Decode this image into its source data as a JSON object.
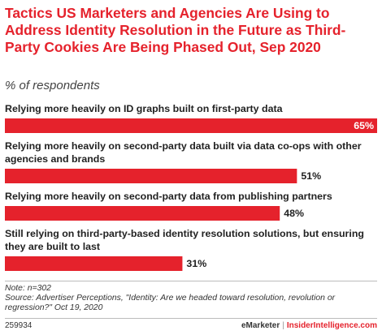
{
  "header": {
    "title": "Tactics US Marketers and Agencies Are Using to Address Identity Resolution in the Future as Third-Party Cookies Are Being Phased Out, Sep 2020",
    "subtitle": "% of respondents"
  },
  "chart_data": {
    "type": "bar",
    "orientation": "horizontal",
    "categories": [
      "Relying more heavily on ID graphs built on first-party data",
      "Relying more heavily on second-party data built via data co-ops with other agencies and brands",
      "Relying more heavily on second-party data from publishing partners",
      "Still relying on third-party-based identity resolution solutions, but ensuring they are built to last"
    ],
    "category_lines": [
      [
        "Relying more heavily on ID graphs built on first-party data"
      ],
      [
        "Relying more heavily on second-party data built via data co-ops with other",
        "agencies and brands"
      ],
      [
        "Relying more heavily on second-party data from publishing partners"
      ],
      [
        "Still relying on third-party-based identity resolution solutions, but ensuring",
        "they are built to last"
      ]
    ],
    "values": [
      65,
      51,
      48,
      31
    ],
    "value_labels": [
      "65%",
      "51%",
      "48%",
      "31%"
    ],
    "unit": "%",
    "xlim": [
      0,
      65
    ],
    "bar_color": "#e5222c",
    "grid": false
  },
  "notes": {
    "note": "Note: n=302",
    "source": "Source: Advertiser Perceptions, \"Identity: Are we headed toward resolution, revolution or regression?\" Oct 19, 2020"
  },
  "footer": {
    "chart_id": "259934",
    "brand_emarketer": "eMarketer",
    "separator": "|",
    "brand_insider": "InsiderIntelligence.com"
  },
  "colors": {
    "accent": "#e5222c",
    "text": "#222222"
  }
}
